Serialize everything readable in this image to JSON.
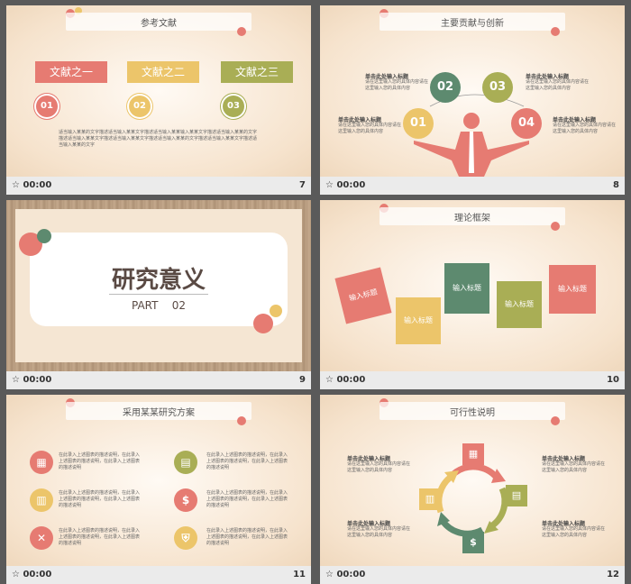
{
  "footer_time": "00:00",
  "slide7": {
    "title": "参考文献",
    "boxes": [
      "文献之一",
      "文献之二",
      "文献之三"
    ],
    "nums": [
      "01",
      "02",
      "03"
    ],
    "body": "适当输入某某的文字描述适当输入某某文字描述适当输入某某输入某某文字描述适当输入某某的文字描述适当输入某某文字描述适当输入某某文字描述适当输入某某的文字描述适当输入某某文字描述适当输入某某的文字",
    "page": "7"
  },
  "slide8": {
    "title": "主要贡献与创新",
    "nums": [
      "01",
      "02",
      "03",
      "04"
    ],
    "label": "单击此处输入标题",
    "desc": "请在这里输入您的具体内容请在这里输入您的具体内容",
    "page": "8"
  },
  "slide9": {
    "title": "研究意义",
    "part": "PART    02",
    "page": "9"
  },
  "slide10": {
    "title": "理论框架",
    "note": "输入标题",
    "page": "10"
  },
  "slide11": {
    "title": "采用某某研究方案",
    "desc": "在此录入上述图表的描述说明，在此录入上述图表的描述说明，在此录入上述图表的描述说明",
    "page": "11"
  },
  "slide12": {
    "title": "可行性说明",
    "label": "单击此处输入标题",
    "desc": "请在这里输入您的具体内容请在这里输入您的具体内容",
    "page": "12"
  },
  "colors": {
    "red": "#e67b72",
    "yellow": "#ecc56a",
    "green": "#a9ae55",
    "teal": "#5d8a6f"
  }
}
